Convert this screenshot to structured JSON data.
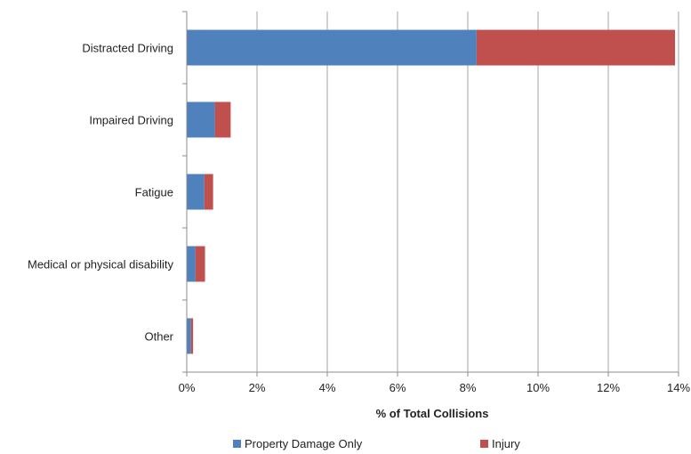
{
  "chart_data": {
    "type": "bar",
    "orientation": "horizontal",
    "stacked": true,
    "categories": [
      "Distracted Driving",
      "Impaired Driving",
      "Fatigue",
      "Medical or physical disability",
      "Other"
    ],
    "series": [
      {
        "name": "Property Damage Only",
        "color": "#4f81bd",
        "values": [
          8.25,
          0.8,
          0.5,
          0.25,
          0.12
        ]
      },
      {
        "name": "Injury",
        "color": "#c0504d",
        "values": [
          5.65,
          0.45,
          0.25,
          0.27,
          0.06
        ]
      }
    ],
    "xlabel": "% of Total Collisions",
    "ylabel": "",
    "xlim": [
      0,
      14
    ],
    "xticks": [
      0,
      2,
      4,
      6,
      8,
      10,
      12,
      14
    ],
    "xtick_labels": [
      "0%",
      "2%",
      "4%",
      "6%",
      "8%",
      "10%",
      "12%",
      "14%"
    ],
    "grid": "vertical",
    "legend_position": "bottom"
  }
}
